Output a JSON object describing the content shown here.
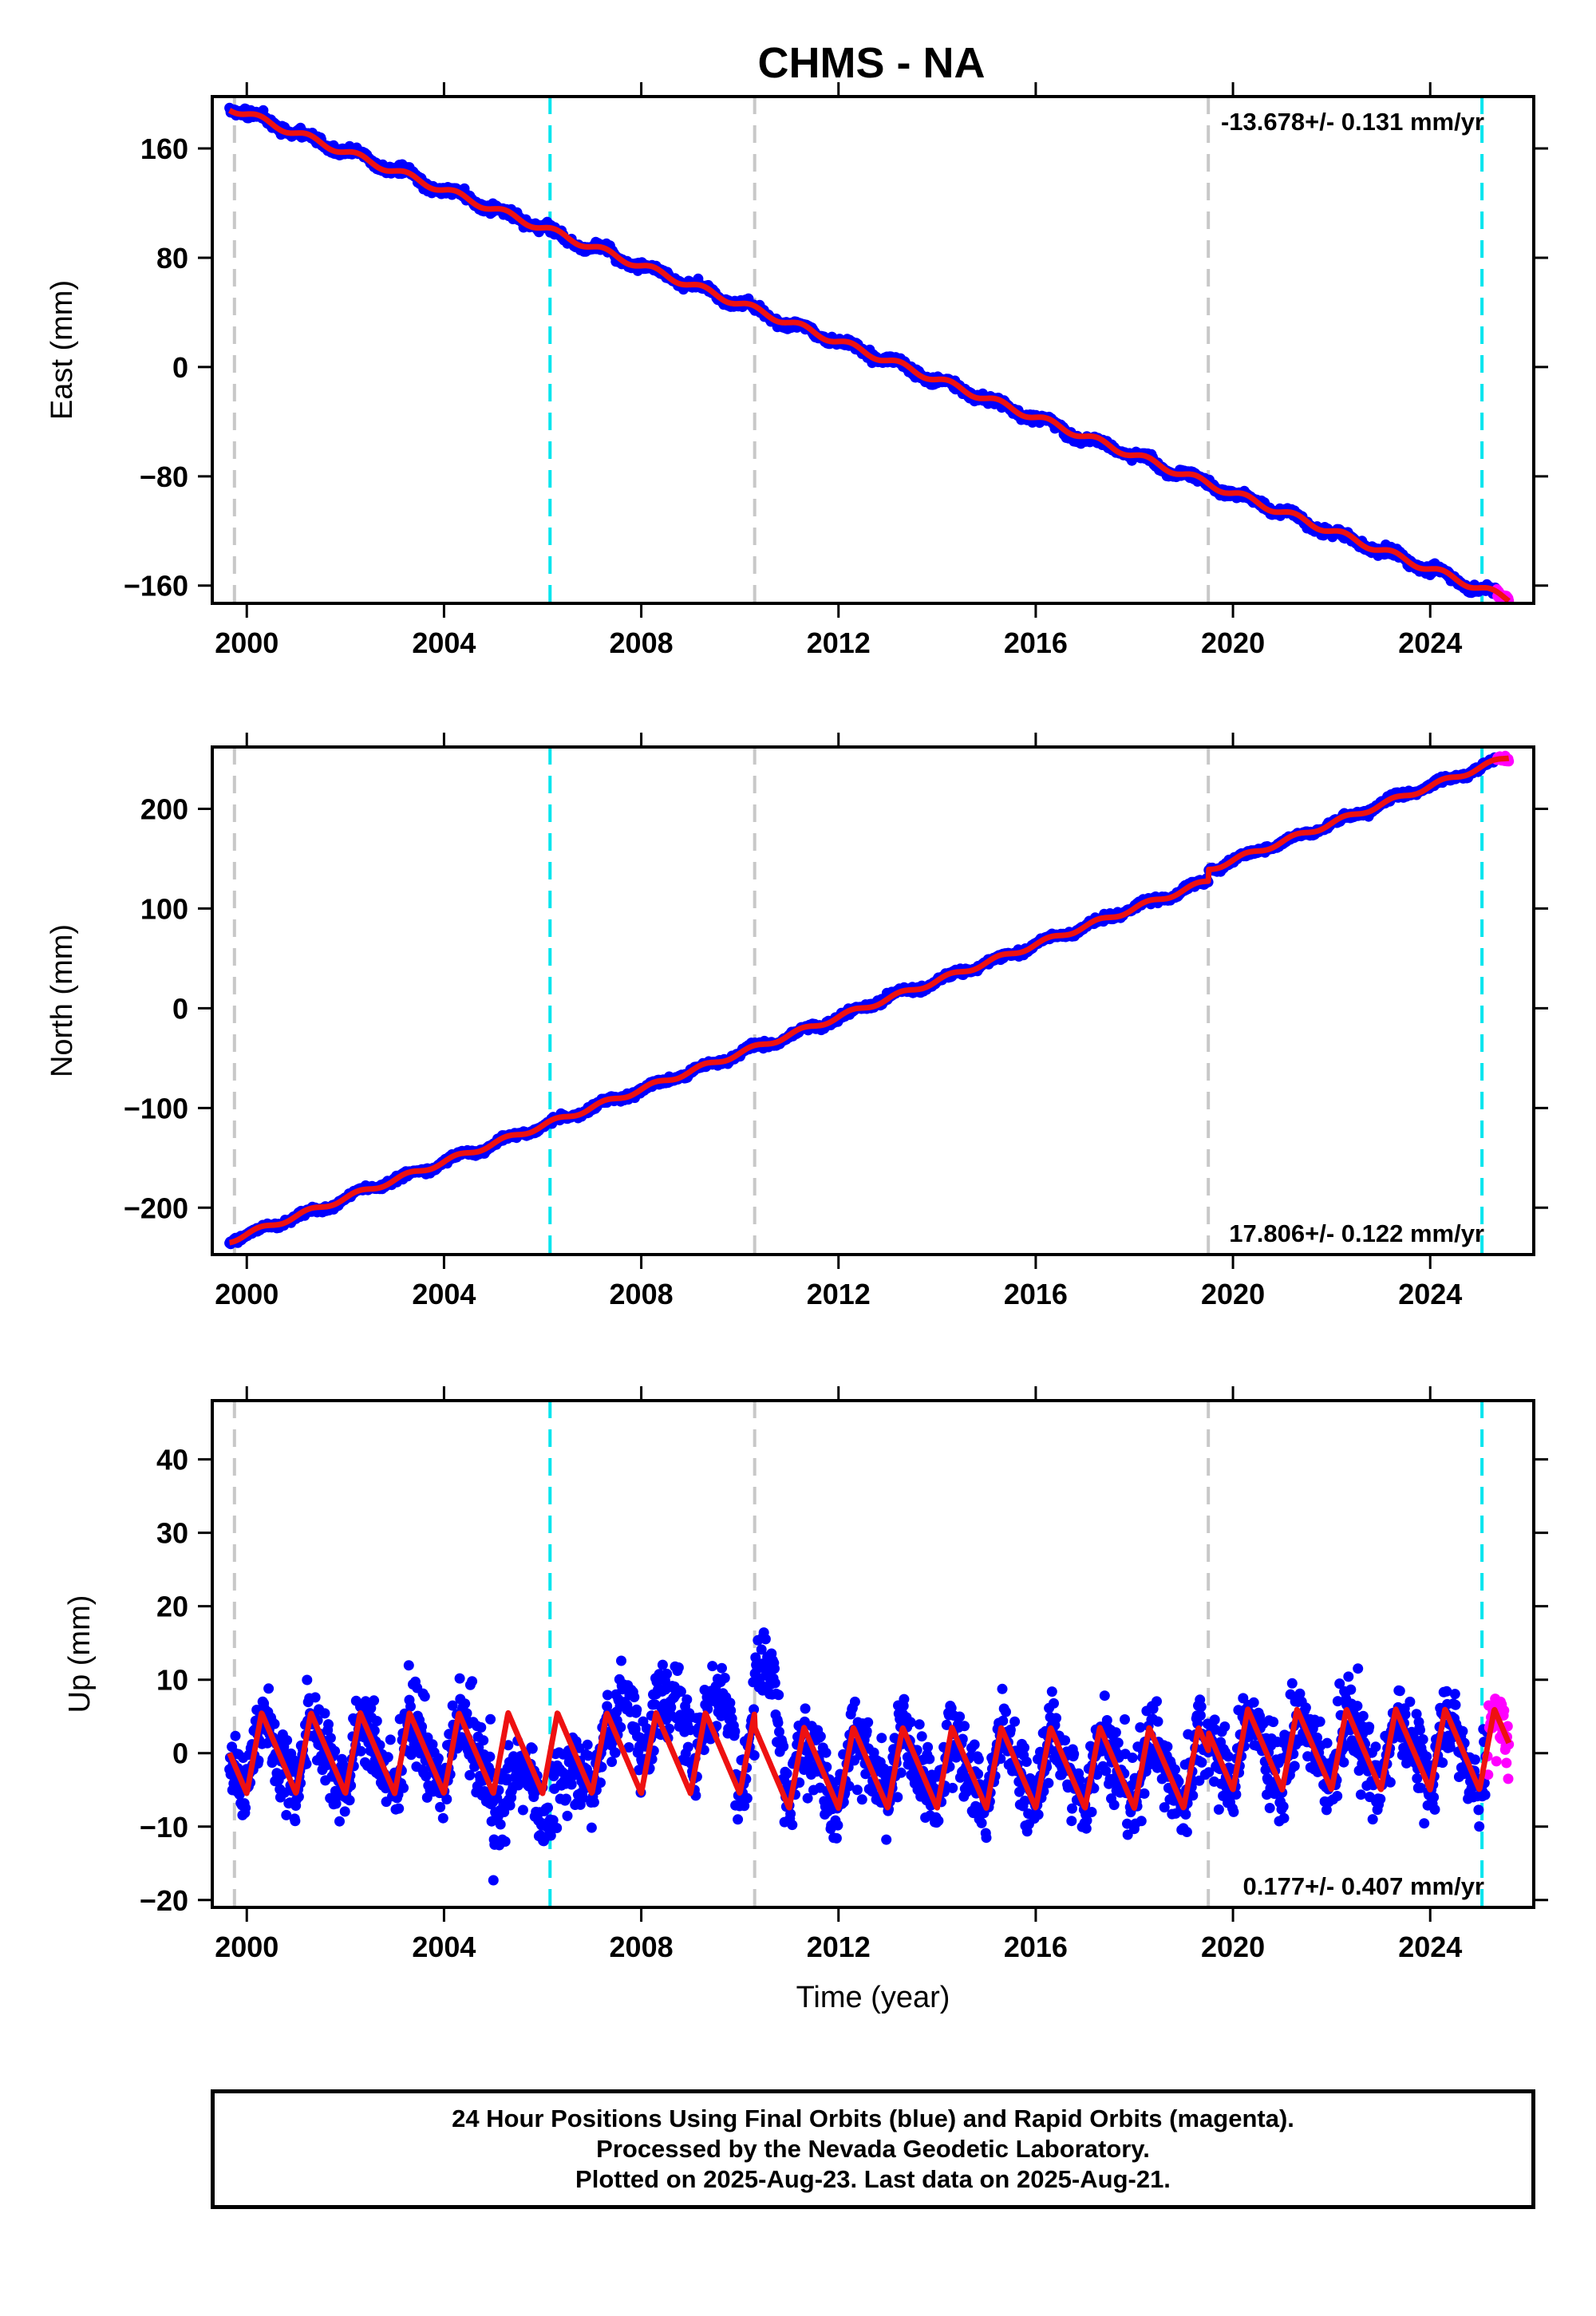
{
  "title": "CHMS - NA",
  "colors": {
    "final_orbits": "#0000ff",
    "rapid_orbits": "#ff00ff",
    "model_fit": "#ee1111",
    "equipment_change": "#c8c8c8",
    "earthquake": "#00e5ee"
  },
  "footer": {
    "line1": "24 Hour Positions Using Final Orbits (blue) and Rapid Orbits (magenta).",
    "line2": "Processed by the Nevada Geodetic Laboratory.",
    "line3": "Plotted on 2025-Aug-23. Last data on 2025-Aug-21."
  },
  "chart_data": [
    {
      "type": "scatter",
      "panel": "east",
      "ylabel": "East (mm)",
      "xlabel": "",
      "xlim": [
        1999.3,
        2026.1
      ],
      "ylim": [
        -173,
        198
      ],
      "xticks": [
        "2000",
        "2004",
        "2008",
        "2012",
        "2016",
        "2020",
        "2024"
      ],
      "yticks": [
        "160",
        "80",
        "0",
        "−80",
        "−160"
      ],
      "ytick_values": [
        160,
        80,
        0,
        -80,
        -160
      ],
      "rate_text": "-13.678+/- 0.131 mm/yr",
      "rate_position": "top-right",
      "gray_dashed_lines": [
        1999.75,
        2010.3,
        2019.5
      ],
      "cyan_dashed_lines": [
        2006.15,
        2025.05
      ],
      "start": [
        1999.65,
        190
      ],
      "end": [
        2025.6,
        -170
      ],
      "trend_mm_per_yr": -13.678,
      "noise_mm": 2.5,
      "offsets": []
    },
    {
      "type": "scatter",
      "panel": "north",
      "ylabel": "North (mm)",
      "xlabel": "",
      "xlim": [
        1999.3,
        2026.1
      ],
      "ylim": [
        -247,
        262
      ],
      "xticks": [
        "2000",
        "2004",
        "2008",
        "2012",
        "2016",
        "2020",
        "2024"
      ],
      "yticks": [
        "200",
        "100",
        "0",
        "−100",
        "−200"
      ],
      "ytick_values": [
        200,
        100,
        0,
        -100,
        -200
      ],
      "rate_text": "17.806+/- 0.122 mm/yr",
      "rate_position": "bottom-right",
      "gray_dashed_lines": [
        1999.75,
        2010.3,
        2019.5
      ],
      "cyan_dashed_lines": [
        2006.15,
        2025.05
      ],
      "start": [
        1999.65,
        -233
      ],
      "end": [
        2025.6,
        248
      ],
      "trend_mm_per_yr": 17.806,
      "noise_mm": 2.5,
      "offsets": [
        {
          "x": 2019.5,
          "dy": 14
        }
      ]
    },
    {
      "type": "scatter",
      "panel": "up",
      "ylabel": "Up (mm)",
      "xlabel": "Time (year)",
      "xlim": [
        1999.3,
        2026.1
      ],
      "ylim": [
        -21,
        48
      ],
      "xticks": [
        "2000",
        "2004",
        "2008",
        "2012",
        "2016",
        "2020",
        "2024"
      ],
      "yticks": [
        "40",
        "30",
        "20",
        "10",
        "0",
        "−10",
        "−20"
      ],
      "ytick_values": [
        40,
        30,
        20,
        10,
        0,
        -10,
        -20
      ],
      "rate_text": "0.177+/- 0.407 mm/yr",
      "rate_position": "bottom-right",
      "gray_dashed_lines": [
        1999.75,
        2010.3,
        2019.5
      ],
      "cyan_dashed_lines": [
        2006.15,
        2025.05
      ],
      "trend_mm_per_yr": 0.177,
      "seasonal_amplitude_mm": 5,
      "noise_mm": 4.5,
      "rapid_orbits_from": 2025.15,
      "anomaly_segments": [
        {
          "from": 2005.0,
          "to": 2006.8,
          "shift": -8
        },
        {
          "from": 2007.5,
          "to": 2009.9,
          "shift": 8
        },
        {
          "from": 2010.3,
          "to": 2011.0,
          "shift": 12
        }
      ]
    }
  ]
}
